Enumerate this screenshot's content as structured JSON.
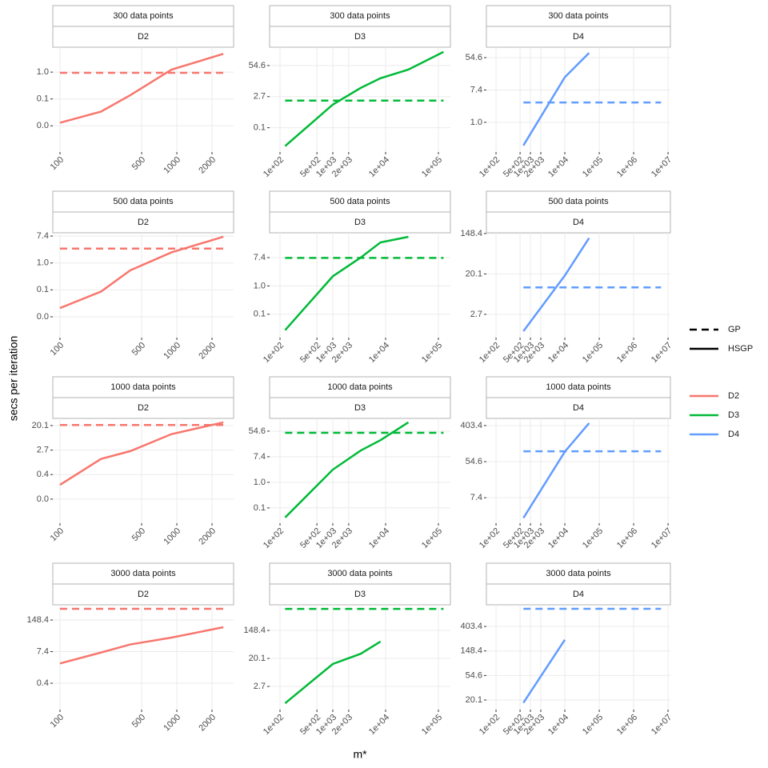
{
  "y_label": "secs per iteration",
  "x_label": "m*",
  "legend": {
    "linetype": [
      {
        "name": "GP",
        "dash": true
      },
      {
        "name": "HSGP",
        "dash": false
      }
    ],
    "color": [
      {
        "name": "D2",
        "color": "#F8766D"
      },
      {
        "name": "D3",
        "color": "#00BA38"
      },
      {
        "name": "D4",
        "color": "#619CFF"
      }
    ]
  },
  "chart_data": [
    {
      "type": "line",
      "strips": [
        "300 data points",
        "D2"
      ],
      "log_x": true,
      "log_y": true,
      "grid": true,
      "x": [
        100,
        225,
        400,
        900,
        2500
      ],
      "xlim": [
        86.8,
        3060
      ],
      "xticks": [
        100,
        500,
        1000,
        2000
      ],
      "ylim": [
        0.0026,
        6.4
      ],
      "yticks": [
        {
          "value": 0.0183,
          "label": "0.0"
        },
        {
          "value": 0.1353,
          "label": "0.1"
        },
        {
          "value": 1,
          "label": "1.0"
        }
      ],
      "series": [
        {
          "name": "GP",
          "color": "#F8766D",
          "dash": true,
          "values": [
            0.95,
            0.95,
            0.95,
            0.95,
            0.95
          ]
        },
        {
          "name": "HSGP",
          "color": "#F8766D",
          "dash": false,
          "values": [
            0.023,
            0.053,
            0.18,
            1.2,
            3.9
          ]
        }
      ]
    },
    {
      "type": "line",
      "strips": [
        "300 data points",
        "D3"
      ],
      "log_x": true,
      "log_y": true,
      "grid": true,
      "x": [
        125,
        1000,
        3375,
        8000,
        27000,
        125000
      ],
      "xlim": [
        63.5,
        168800
      ],
      "xticks": [
        {
          "value": 100,
          "label": "1e+02"
        },
        {
          "value": 500,
          "label": "5e+02"
        },
        {
          "value": 1000,
          "label": "1e+03"
        },
        {
          "value": 2000,
          "label": "2e+03"
        },
        {
          "value": 10000,
          "label": "1e+04"
        },
        {
          "value": 100000,
          "label": "1e+05"
        }
      ],
      "ylim": [
        0.013,
        320
      ],
      "yticks": [
        {
          "value": 0.1353,
          "label": "0.1"
        },
        {
          "value": 2.7183,
          "label": "2.7"
        },
        {
          "value": 54.5982,
          "label": "54.6"
        }
      ],
      "series": [
        {
          "name": "GP",
          "color": "#00BA38",
          "dash": true,
          "values": [
            1.85,
            1.85,
            1.85,
            1.85,
            1.85,
            1.85
          ]
        },
        {
          "name": "HSGP",
          "color": "#00BA38",
          "dash": false,
          "values": [
            0.023,
            1.26,
            6.3,
            16,
            37,
            203
          ]
        }
      ]
    },
    {
      "type": "line",
      "strips": [
        "300 data points",
        "D4"
      ],
      "log_x": true,
      "log_y": true,
      "grid": true,
      "x": [
        625,
        10000,
        50625,
        6250000
      ],
      "xlim": [
        52.5,
        11700000
      ],
      "xticks": [
        {
          "value": 100,
          "label": "1e+02"
        },
        {
          "value": 500,
          "label": "5e+02"
        },
        {
          "value": 1000,
          "label": "1e+03"
        },
        {
          "value": 2000,
          "label": "2e+03"
        },
        {
          "value": 10000,
          "label": "1e+04"
        },
        {
          "value": 100000,
          "label": "1e+05"
        },
        {
          "value": 1000000,
          "label": "1e+06"
        },
        {
          "value": 10000000,
          "label": "1e+07"
        }
      ],
      "ylim": [
        0.16,
        104
      ],
      "yticks": [
        {
          "value": 1,
          "label": "1.0"
        },
        {
          "value": 7.3891,
          "label": "7.4"
        },
        {
          "value": 54.5982,
          "label": "54.6"
        }
      ],
      "series": [
        {
          "name": "GP",
          "color": "#619CFF",
          "dash": true,
          "values": [
            3.4,
            3.4,
            3.4,
            3.4
          ]
        },
        {
          "name": "HSGP",
          "color": "#619CFF",
          "dash": false,
          "values": [
            0.24,
            16.3,
            73,
            null
          ]
        }
      ]
    },
    {
      "type": "line",
      "strips": [
        "500 data points",
        "D2"
      ],
      "log_x": true,
      "log_y": true,
      "grid": true,
      "x": [
        100,
        225,
        400,
        900,
        2500
      ],
      "xlim": [
        86.8,
        3060
      ],
      "xticks": [
        100,
        500,
        1000,
        2000
      ],
      "ylim": [
        0.0039,
        9.4
      ],
      "yticks": [
        {
          "value": 0.0183,
          "label": "0.0"
        },
        {
          "value": 0.1353,
          "label": "0.1"
        },
        {
          "value": 1,
          "label": "1.0"
        },
        {
          "value": 7.3891,
          "label": "7.4"
        }
      ],
      "series": [
        {
          "name": "GP",
          "color": "#F8766D",
          "dash": true,
          "values": [
            2.9,
            2.9,
            2.9,
            2.9,
            2.9
          ]
        },
        {
          "name": "HSGP",
          "color": "#F8766D",
          "dash": false,
          "values": [
            0.035,
            0.12,
            0.58,
            2.2,
            7.0
          ]
        }
      ]
    },
    {
      "type": "line",
      "strips": [
        "500 data points",
        "D3"
      ],
      "log_x": true,
      "log_y": true,
      "grid": true,
      "x": [
        125,
        1000,
        3375,
        8000,
        27000,
        125000
      ],
      "xlim": [
        63.5,
        168800
      ],
      "xticks": [
        {
          "value": 100,
          "label": "1e+02"
        },
        {
          "value": 500,
          "label": "5e+02"
        },
        {
          "value": 1000,
          "label": "1e+03"
        },
        {
          "value": 2000,
          "label": "2e+03"
        },
        {
          "value": 10000,
          "label": "1e+04"
        },
        {
          "value": 100000,
          "label": "1e+05"
        }
      ],
      "ylim": [
        0.026,
        42.5
      ],
      "yticks": [
        {
          "value": 0.1353,
          "label": "0.1"
        },
        {
          "value": 1,
          "label": "1.0"
        },
        {
          "value": 7.3891,
          "label": "7.4"
        }
      ],
      "series": [
        {
          "name": "GP",
          "color": "#00BA38",
          "dash": true,
          "values": [
            7.2,
            7.2,
            7.2,
            7.2,
            7.2,
            7.2
          ]
        },
        {
          "name": "HSGP",
          "color": "#00BA38",
          "dash": false,
          "values": [
            0.044,
            1.97,
            7.4,
            21.5,
            32,
            null
          ]
        }
      ]
    },
    {
      "type": "line",
      "strips": [
        "500 data points",
        "D4"
      ],
      "log_x": true,
      "log_y": true,
      "grid": true,
      "x": [
        625,
        10000,
        50625,
        6250000
      ],
      "xlim": [
        52.5,
        11700000
      ],
      "xticks": [
        {
          "value": 100,
          "label": "1e+02"
        },
        {
          "value": 500,
          "label": "5e+02"
        },
        {
          "value": 1000,
          "label": "1e+03"
        },
        {
          "value": 2000,
          "label": "2e+03"
        },
        {
          "value": 10000,
          "label": "1e+04"
        },
        {
          "value": 100000,
          "label": "1e+05"
        },
        {
          "value": 1000000,
          "label": "1e+06"
        },
        {
          "value": 10000000,
          "label": "1e+07"
        }
      ],
      "ylim": [
        0.86,
        154
      ],
      "yticks": [
        {
          "value": 2.7183,
          "label": "2.7"
        },
        {
          "value": 20.0855,
          "label": "20.1"
        },
        {
          "value": 148.4132,
          "label": "148.4"
        }
      ],
      "series": [
        {
          "name": "GP",
          "color": "#619CFF",
          "dash": true,
          "values": [
            10.3,
            10.3,
            10.3,
            10.3
          ]
        },
        {
          "name": "HSGP",
          "color": "#619CFF",
          "dash": false,
          "values": [
            1.18,
            18.6,
            119,
            null
          ]
        }
      ]
    },
    {
      "type": "line",
      "strips": [
        "1000 data points",
        "D2"
      ],
      "log_x": true,
      "log_y": true,
      "grid": true,
      "x": [
        100,
        225,
        400,
        900,
        2500
      ],
      "xlim": [
        86.8,
        3060
      ],
      "xticks": [
        100,
        500,
        1000,
        2000
      ],
      "ylim": [
        0.007,
        36
      ],
      "yticks": [
        {
          "value": 0.0498,
          "label": "0.0"
        },
        {
          "value": 0.3679,
          "label": "0.4"
        },
        {
          "value": 2.7183,
          "label": "2.7"
        },
        {
          "value": 20.0855,
          "label": "20.1"
        }
      ],
      "series": [
        {
          "name": "GP",
          "color": "#F8766D",
          "dash": true,
          "values": [
            21,
            21,
            21,
            21,
            21
          ]
        },
        {
          "name": "HSGP",
          "color": "#F8766D",
          "dash": false,
          "values": [
            0.16,
            1.33,
            2.5,
            10,
            26
          ]
        }
      ]
    },
    {
      "type": "line",
      "strips": [
        "1000 data points",
        "D3"
      ],
      "log_x": true,
      "log_y": true,
      "grid": true,
      "x": [
        125,
        1000,
        3375,
        8000,
        27000,
        125000
      ],
      "xlim": [
        63.5,
        168800
      ],
      "xticks": [
        {
          "value": 100,
          "label": "1e+02"
        },
        {
          "value": 500,
          "label": "5e+02"
        },
        {
          "value": 1000,
          "label": "1e+03"
        },
        {
          "value": 2000,
          "label": "2e+03"
        },
        {
          "value": 10000,
          "label": "1e+04"
        },
        {
          "value": 100000,
          "label": "1e+05"
        }
      ],
      "ylim": [
        0.041,
        148
      ],
      "yticks": [
        {
          "value": 0.1353,
          "label": "0.1"
        },
        {
          "value": 1,
          "label": "1.0"
        },
        {
          "value": 7.3891,
          "label": "7.4"
        },
        {
          "value": 54.5982,
          "label": "54.6"
        }
      ],
      "series": [
        {
          "name": "GP",
          "color": "#00BA38",
          "dash": true,
          "values": [
            48,
            48,
            48,
            48,
            48,
            48
          ]
        },
        {
          "name": "HSGP",
          "color": "#00BA38",
          "dash": false,
          "values": [
            0.064,
            2.7,
            12,
            27,
            109,
            null
          ]
        }
      ]
    },
    {
      "type": "line",
      "strips": [
        "1000 data points",
        "D4"
      ],
      "log_x": true,
      "log_y": true,
      "grid": true,
      "x": [
        625,
        10000,
        50625,
        6250000
      ],
      "xlim": [
        52.5,
        11700000
      ],
      "xticks": [
        {
          "value": 100,
          "label": "1e+02"
        },
        {
          "value": 500,
          "label": "5e+02"
        },
        {
          "value": 1000,
          "label": "1e+03"
        },
        {
          "value": 2000,
          "label": "2e+03"
        },
        {
          "value": 10000,
          "label": "1e+04"
        },
        {
          "value": 100000,
          "label": "1e+05"
        },
        {
          "value": 1000000,
          "label": "1e+06"
        },
        {
          "value": 10000000,
          "label": "1e+07"
        }
      ],
      "ylim": [
        1.8,
        600
      ],
      "yticks": [
        {
          "value": 7.3891,
          "label": "7.4"
        },
        {
          "value": 54.5982,
          "label": "54.6"
        },
        {
          "value": 403.4288,
          "label": "403.4"
        }
      ],
      "series": [
        {
          "name": "GP",
          "color": "#619CFF",
          "dash": true,
          "values": [
            97,
            97,
            97,
            97
          ]
        },
        {
          "name": "HSGP",
          "color": "#619CFF",
          "dash": false,
          "values": [
            2.4,
            95,
            460,
            null
          ]
        }
      ]
    },
    {
      "type": "line",
      "strips": [
        "3000 data points",
        "D2"
      ],
      "log_x": true,
      "log_y": true,
      "grid": true,
      "x": [
        100,
        225,
        400,
        900,
        2500
      ],
      "xlim": [
        86.8,
        3060
      ],
      "xticks": [
        100,
        500,
        1000,
        2000
      ],
      "ylim": [
        0.03,
        630
      ],
      "yticks": [
        {
          "value": 0.3679,
          "label": "0.4"
        },
        {
          "value": 7.3891,
          "label": "7.4"
        },
        {
          "value": 148.4132,
          "label": "148.4"
        }
      ],
      "series": [
        {
          "name": "GP",
          "color": "#F8766D",
          "dash": true,
          "values": [
            430,
            430,
            430,
            430,
            430
          ]
        },
        {
          "name": "HSGP",
          "color": "#F8766D",
          "dash": false,
          "values": [
            2.4,
            6.8,
            14.6,
            28,
            75
          ]
        }
      ]
    },
    {
      "type": "line",
      "strips": [
        "3000 data points",
        "D3"
      ],
      "log_x": true,
      "log_y": true,
      "grid": true,
      "x": [
        125,
        1000,
        3375,
        8000,
        27000,
        125000
      ],
      "xlim": [
        63.5,
        168800
      ],
      "xticks": [
        {
          "value": 100,
          "label": "1e+02"
        },
        {
          "value": 500,
          "label": "5e+02"
        },
        {
          "value": 1000,
          "label": "1e+03"
        },
        {
          "value": 2000,
          "label": "2e+03"
        },
        {
          "value": 10000,
          "label": "1e+04"
        },
        {
          "value": 100000,
          "label": "1e+05"
        }
      ],
      "ylim": [
        0.52,
        925
      ],
      "yticks": [
        {
          "value": 2.7183,
          "label": "2.7"
        },
        {
          "value": 20.0855,
          "label": "20.1"
        },
        {
          "value": 148.4132,
          "label": "148.4"
        }
      ],
      "series": [
        {
          "name": "GP",
          "color": "#00BA38",
          "dash": true,
          "values": [
            690,
            690,
            690,
            690,
            690,
            690
          ]
        },
        {
          "name": "HSGP",
          "color": "#00BA38",
          "dash": false,
          "values": [
            0.82,
            13.5,
            28,
            67,
            null,
            null
          ]
        }
      ]
    },
    {
      "type": "line",
      "strips": [
        "3000 data points",
        "D4"
      ],
      "log_x": true,
      "log_y": true,
      "grid": true,
      "x": [
        625,
        10000,
        50625,
        6250000
      ],
      "xlim": [
        52.5,
        11700000
      ],
      "xticks": [
        {
          "value": 100,
          "label": "1e+02"
        },
        {
          "value": 500,
          "label": "5e+02"
        },
        {
          "value": 1000,
          "label": "1e+03"
        },
        {
          "value": 2000,
          "label": "2e+03"
        },
        {
          "value": 10000,
          "label": "1e+04"
        },
        {
          "value": 100000,
          "label": "1e+05"
        },
        {
          "value": 1000000,
          "label": "1e+06"
        },
        {
          "value": 10000000,
          "label": "1e+07"
        }
      ],
      "ylim": [
        13.6,
        975
      ],
      "yticks": [
        {
          "value": 20.0855,
          "label": "20.1"
        },
        {
          "value": 54.5982,
          "label": "54.6"
        },
        {
          "value": 148.4132,
          "label": "148.4"
        },
        {
          "value": 403.4288,
          "label": "403.4"
        }
      ],
      "series": [
        {
          "name": "GP",
          "color": "#619CFF",
          "dash": true,
          "values": [
            830,
            830,
            830,
            830
          ]
        },
        {
          "name": "HSGP",
          "color": "#619CFF",
          "dash": false,
          "values": [
            18,
            235,
            null,
            null
          ]
        }
      ]
    }
  ]
}
